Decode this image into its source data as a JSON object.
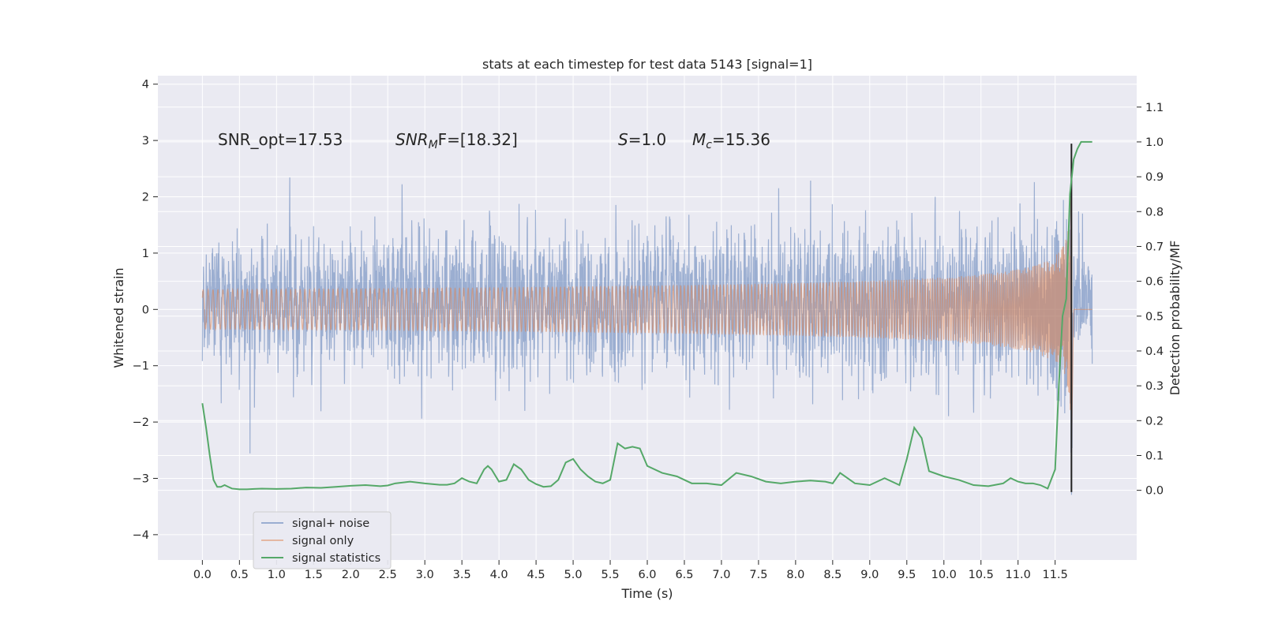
{
  "chart_data": {
    "type": "line",
    "title": "stats at each timestep for test data 5143 [signal=1]",
    "xlabel": "Time (s)",
    "ylabel_left": "Whitened strain",
    "ylabel_right": "Detection probability/MF",
    "xlim": [
      -0.6,
      12.6
    ],
    "ylim_left": [
      -4.45,
      4.15
    ],
    "ylim_right": [
      -0.2,
      1.19
    ],
    "x_ticks": [
      "0.0",
      "0.5",
      "1.0",
      "1.5",
      "2.0",
      "2.5",
      "3.0",
      "3.5",
      "4.0",
      "4.5",
      "5.0",
      "5.5",
      "6.0",
      "6.5",
      "7.0",
      "7.5",
      "8.0",
      "8.5",
      "9.0",
      "9.5",
      "10.0",
      "10.5",
      "11.0",
      "11.5"
    ],
    "y_ticks_left": [
      "4",
      "3",
      "2",
      "1",
      "0",
      "−1",
      "−2",
      "−3",
      "−4"
    ],
    "y_ticks_right": [
      "1.1",
      "1.0",
      "0.9",
      "0.8",
      "0.7",
      "0.6",
      "0.5",
      "0.4",
      "0.3",
      "0.2",
      "0.1",
      "0.0"
    ],
    "grid": true,
    "legend_position": "lower-left",
    "colors": {
      "background": "#eaeaf2",
      "grid": "#ffffff",
      "noise": "#4c72b0",
      "signal": "#dd8452",
      "statistics": "#55a868",
      "marker": "#222222"
    },
    "annotations": {
      "snr_opt": "SNR_opt=17.53",
      "snr_mf_sym": "SNR",
      "snr_mf_sub": "M",
      "snr_mf_rest": "F=[18.32]",
      "s_sym": "S",
      "s_rest": "=1.0",
      "mc_sym": "M",
      "mc_sub": "c",
      "mc_rest": "=15.36"
    },
    "series": [
      {
        "name": "signal+ noise",
        "kind": "noise",
        "x_range": [
          0,
          12
        ],
        "envelope_left": [
          -1.4,
          1.6
        ]
      },
      {
        "name": "signal only",
        "kind": "chirp",
        "x_range": [
          0,
          12
        ],
        "merger_time": 11.72,
        "peak_amplitude_left": 2.6
      },
      {
        "name": "signal statistics",
        "kind": "line",
        "x": [
          0.0,
          0.05,
          0.1,
          0.15,
          0.2,
          0.25,
          0.3,
          0.35,
          0.4,
          0.5,
          0.6,
          0.7,
          0.8,
          1.0,
          1.2,
          1.4,
          1.6,
          1.8,
          2.0,
          2.2,
          2.4,
          2.5,
          2.6,
          2.8,
          3.0,
          3.2,
          3.3,
          3.4,
          3.5,
          3.6,
          3.7,
          3.8,
          3.85,
          3.9,
          4.0,
          4.1,
          4.2,
          4.3,
          4.4,
          4.5,
          4.6,
          4.7,
          4.8,
          4.9,
          5.0,
          5.1,
          5.2,
          5.3,
          5.4,
          5.5,
          5.6,
          5.7,
          5.8,
          5.9,
          6.0,
          6.2,
          6.4,
          6.6,
          6.8,
          7.0,
          7.2,
          7.4,
          7.6,
          7.8,
          8.0,
          8.2,
          8.4,
          8.5,
          8.6,
          8.8,
          9.0,
          9.2,
          9.4,
          9.5,
          9.6,
          9.7,
          9.8,
          10.0,
          10.2,
          10.4,
          10.6,
          10.8,
          10.9,
          11.0,
          11.1,
          11.2,
          11.3,
          11.4,
          11.5,
          11.55,
          11.6,
          11.65,
          11.7,
          11.75,
          11.8,
          11.85,
          11.9,
          11.95,
          12.0
        ],
        "y": [
          0.25,
          0.18,
          0.1,
          0.03,
          0.01,
          0.01,
          0.015,
          0.01,
          0.005,
          0.003,
          0.003,
          0.004,
          0.005,
          0.004,
          0.005,
          0.008,
          0.007,
          0.01,
          0.013,
          0.015,
          0.012,
          0.014,
          0.02,
          0.025,
          0.02,
          0.016,
          0.016,
          0.02,
          0.035,
          0.025,
          0.02,
          0.06,
          0.07,
          0.06,
          0.025,
          0.03,
          0.075,
          0.06,
          0.03,
          0.018,
          0.01,
          0.012,
          0.03,
          0.08,
          0.09,
          0.06,
          0.04,
          0.025,
          0.02,
          0.03,
          0.135,
          0.12,
          0.125,
          0.12,
          0.07,
          0.05,
          0.04,
          0.02,
          0.02,
          0.015,
          0.05,
          0.04,
          0.025,
          0.02,
          0.025,
          0.028,
          0.025,
          0.02,
          0.05,
          0.02,
          0.015,
          0.035,
          0.015,
          0.09,
          0.18,
          0.15,
          0.055,
          0.04,
          0.03,
          0.015,
          0.012,
          0.02,
          0.035,
          0.025,
          0.02,
          0.02,
          0.015,
          0.005,
          0.06,
          0.3,
          0.5,
          0.55,
          0.85,
          0.95,
          0.98,
          1.0,
          1.0,
          1.0,
          1.0
        ]
      }
    ]
  }
}
